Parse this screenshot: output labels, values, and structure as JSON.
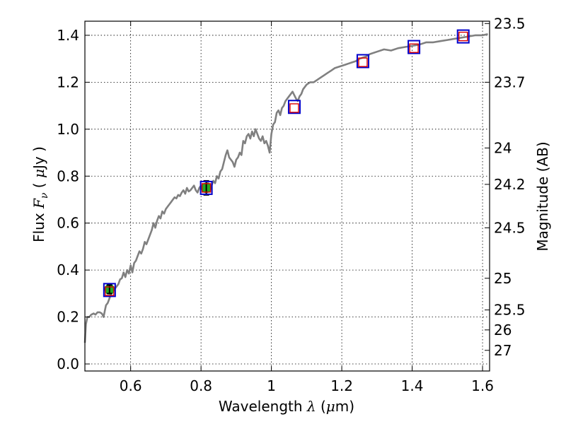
{
  "chart_data": {
    "type": "line",
    "xlabel": {
      "prefix": "Wavelength",
      "symbol": "λ",
      "unit_open": "(",
      "unit_mu": "μ",
      "unit_rest": "m)"
    },
    "ylabel": {
      "prefix": "Flux",
      "symbol": "F",
      "subscript": "ν",
      "unit_open": "(",
      "unit_mu": "μ",
      "unit_rest": "Jy )"
    },
    "y2label": "Magnitude (AB)",
    "xlim": [
      0.47,
      1.62
    ],
    "ylim": [
      -0.03,
      1.46
    ],
    "xticks": [
      {
        "value": 0.6,
        "label": "0.6"
      },
      {
        "value": 0.8,
        "label": "0.8"
      },
      {
        "value": 1.0,
        "label": "1"
      },
      {
        "value": 1.2,
        "label": "1.2"
      },
      {
        "value": 1.4,
        "label": "1.4"
      },
      {
        "value": 1.6,
        "label": "1.6"
      }
    ],
    "yticks": [
      {
        "value": 0.0,
        "label": "0.0"
      },
      {
        "value": 0.2,
        "label": "0.2"
      },
      {
        "value": 0.4,
        "label": "0.4"
      },
      {
        "value": 0.6,
        "label": "0.6"
      },
      {
        "value": 0.8,
        "label": "0.8"
      },
      {
        "value": 1.0,
        "label": "1.0"
      },
      {
        "value": 1.2,
        "label": "1.2"
      },
      {
        "value": 1.4,
        "label": "1.4"
      }
    ],
    "y2ticks": [
      {
        "flux": 1.45,
        "label": "23.5"
      },
      {
        "flux": 1.2,
        "label": "23.7"
      },
      {
        "flux": 0.92,
        "label": "24"
      },
      {
        "flux": 0.765,
        "label": "24.2"
      },
      {
        "flux": 0.58,
        "label": "24.5"
      },
      {
        "flux": 0.365,
        "label": "25"
      },
      {
        "flux": 0.23,
        "label": "25.5"
      },
      {
        "flux": 0.145,
        "label": "26"
      },
      {
        "flux": 0.058,
        "label": "27"
      }
    ],
    "grid": true,
    "colors": {
      "spectrum": "#808080",
      "model": "#0000cc",
      "predicted": "#dd0000",
      "observed": "#22aa22"
    },
    "series": [
      {
        "name": "spectrum",
        "x": [
          0.47,
          0.473,
          0.477,
          0.482,
          0.488,
          0.495,
          0.5,
          0.506,
          0.512,
          0.518,
          0.523,
          0.527,
          0.53,
          0.535,
          0.54,
          0.545,
          0.55,
          0.555,
          0.56,
          0.565,
          0.57,
          0.575,
          0.58,
          0.585,
          0.59,
          0.595,
          0.6,
          0.605,
          0.61,
          0.615,
          0.62,
          0.625,
          0.63,
          0.635,
          0.64,
          0.645,
          0.65,
          0.655,
          0.66,
          0.665,
          0.67,
          0.675,
          0.68,
          0.685,
          0.69,
          0.695,
          0.7,
          0.705,
          0.71,
          0.715,
          0.72,
          0.725,
          0.73,
          0.735,
          0.74,
          0.745,
          0.75,
          0.755,
          0.76,
          0.765,
          0.77,
          0.775,
          0.78,
          0.785,
          0.79,
          0.795,
          0.8,
          0.805,
          0.81,
          0.815,
          0.82,
          0.825,
          0.83,
          0.835,
          0.84,
          0.845,
          0.85,
          0.855,
          0.86,
          0.865,
          0.87,
          0.875,
          0.88,
          0.885,
          0.89,
          0.895,
          0.9,
          0.905,
          0.91,
          0.915,
          0.92,
          0.925,
          0.93,
          0.935,
          0.94,
          0.945,
          0.95,
          0.955,
          0.96,
          0.965,
          0.97,
          0.975,
          0.98,
          0.985,
          0.99,
          0.995,
          1.0,
          1.005,
          1.01,
          1.015,
          1.02,
          1.025,
          1.03,
          1.035,
          1.04,
          1.045,
          1.05,
          1.06,
          1.07,
          1.075,
          1.08,
          1.085,
          1.09,
          1.1,
          1.11,
          1.12,
          1.13,
          1.14,
          1.15,
          1.16,
          1.17,
          1.18,
          1.19,
          1.2,
          1.21,
          1.22,
          1.23,
          1.24,
          1.25,
          1.26,
          1.27,
          1.28,
          1.3,
          1.32,
          1.34,
          1.36,
          1.38,
          1.4,
          1.42,
          1.44,
          1.46,
          1.48,
          1.5,
          1.52,
          1.54,
          1.56,
          1.58,
          1.6,
          1.615
        ],
        "y": [
          0.09,
          0.17,
          0.2,
          0.2,
          0.21,
          0.215,
          0.21,
          0.22,
          0.22,
          0.215,
          0.2,
          0.23,
          0.25,
          0.26,
          0.28,
          0.3,
          0.31,
          0.32,
          0.33,
          0.34,
          0.36,
          0.365,
          0.39,
          0.37,
          0.4,
          0.385,
          0.42,
          0.39,
          0.43,
          0.44,
          0.46,
          0.48,
          0.47,
          0.49,
          0.52,
          0.51,
          0.53,
          0.55,
          0.57,
          0.6,
          0.58,
          0.61,
          0.63,
          0.62,
          0.65,
          0.64,
          0.66,
          0.67,
          0.68,
          0.69,
          0.7,
          0.71,
          0.705,
          0.72,
          0.715,
          0.73,
          0.74,
          0.725,
          0.75,
          0.735,
          0.74,
          0.75,
          0.76,
          0.74,
          0.73,
          0.75,
          0.76,
          0.74,
          0.75,
          0.76,
          0.77,
          0.74,
          0.76,
          0.78,
          0.77,
          0.8,
          0.79,
          0.82,
          0.83,
          0.86,
          0.89,
          0.91,
          0.88,
          0.87,
          0.86,
          0.84,
          0.87,
          0.88,
          0.9,
          0.89,
          0.95,
          0.94,
          0.97,
          0.98,
          0.96,
          0.99,
          0.97,
          1.0,
          0.98,
          0.96,
          0.95,
          0.97,
          0.94,
          0.95,
          0.93,
          0.9,
          0.98,
          1.02,
          1.03,
          1.07,
          1.08,
          1.06,
          1.09,
          1.1,
          1.12,
          1.13,
          1.14,
          1.16,
          1.13,
          1.12,
          1.14,
          1.15,
          1.17,
          1.19,
          1.2,
          1.2,
          1.21,
          1.22,
          1.23,
          1.24,
          1.25,
          1.26,
          1.265,
          1.27,
          1.275,
          1.28,
          1.285,
          1.29,
          1.3,
          1.305,
          1.31,
          1.32,
          1.33,
          1.34,
          1.335,
          1.345,
          1.35,
          1.355,
          1.36,
          1.37,
          1.37,
          1.375,
          1.38,
          1.385,
          1.39,
          1.395,
          1.4,
          1.4,
          1.405
        ]
      }
    ],
    "bands": [
      {
        "x": 0.54,
        "model": 0.315,
        "predicted": 0.31,
        "observed": 0.318,
        "err": 0.018
      },
      {
        "x": 0.815,
        "model": 0.75,
        "predicted": 0.75,
        "observed": 0.75,
        "err": 0.03
      },
      {
        "x": 1.065,
        "model": 1.095,
        "predicted": 1.09,
        "observed": null,
        "err": null
      },
      {
        "x": 1.26,
        "model": 1.29,
        "predicted": 1.285,
        "observed": null,
        "err": null
      },
      {
        "x": 1.405,
        "model": 1.35,
        "predicted": 1.345,
        "observed": null,
        "err": null
      },
      {
        "x": 1.545,
        "model": 1.395,
        "predicted": 1.395,
        "observed": null,
        "err": null
      }
    ]
  }
}
